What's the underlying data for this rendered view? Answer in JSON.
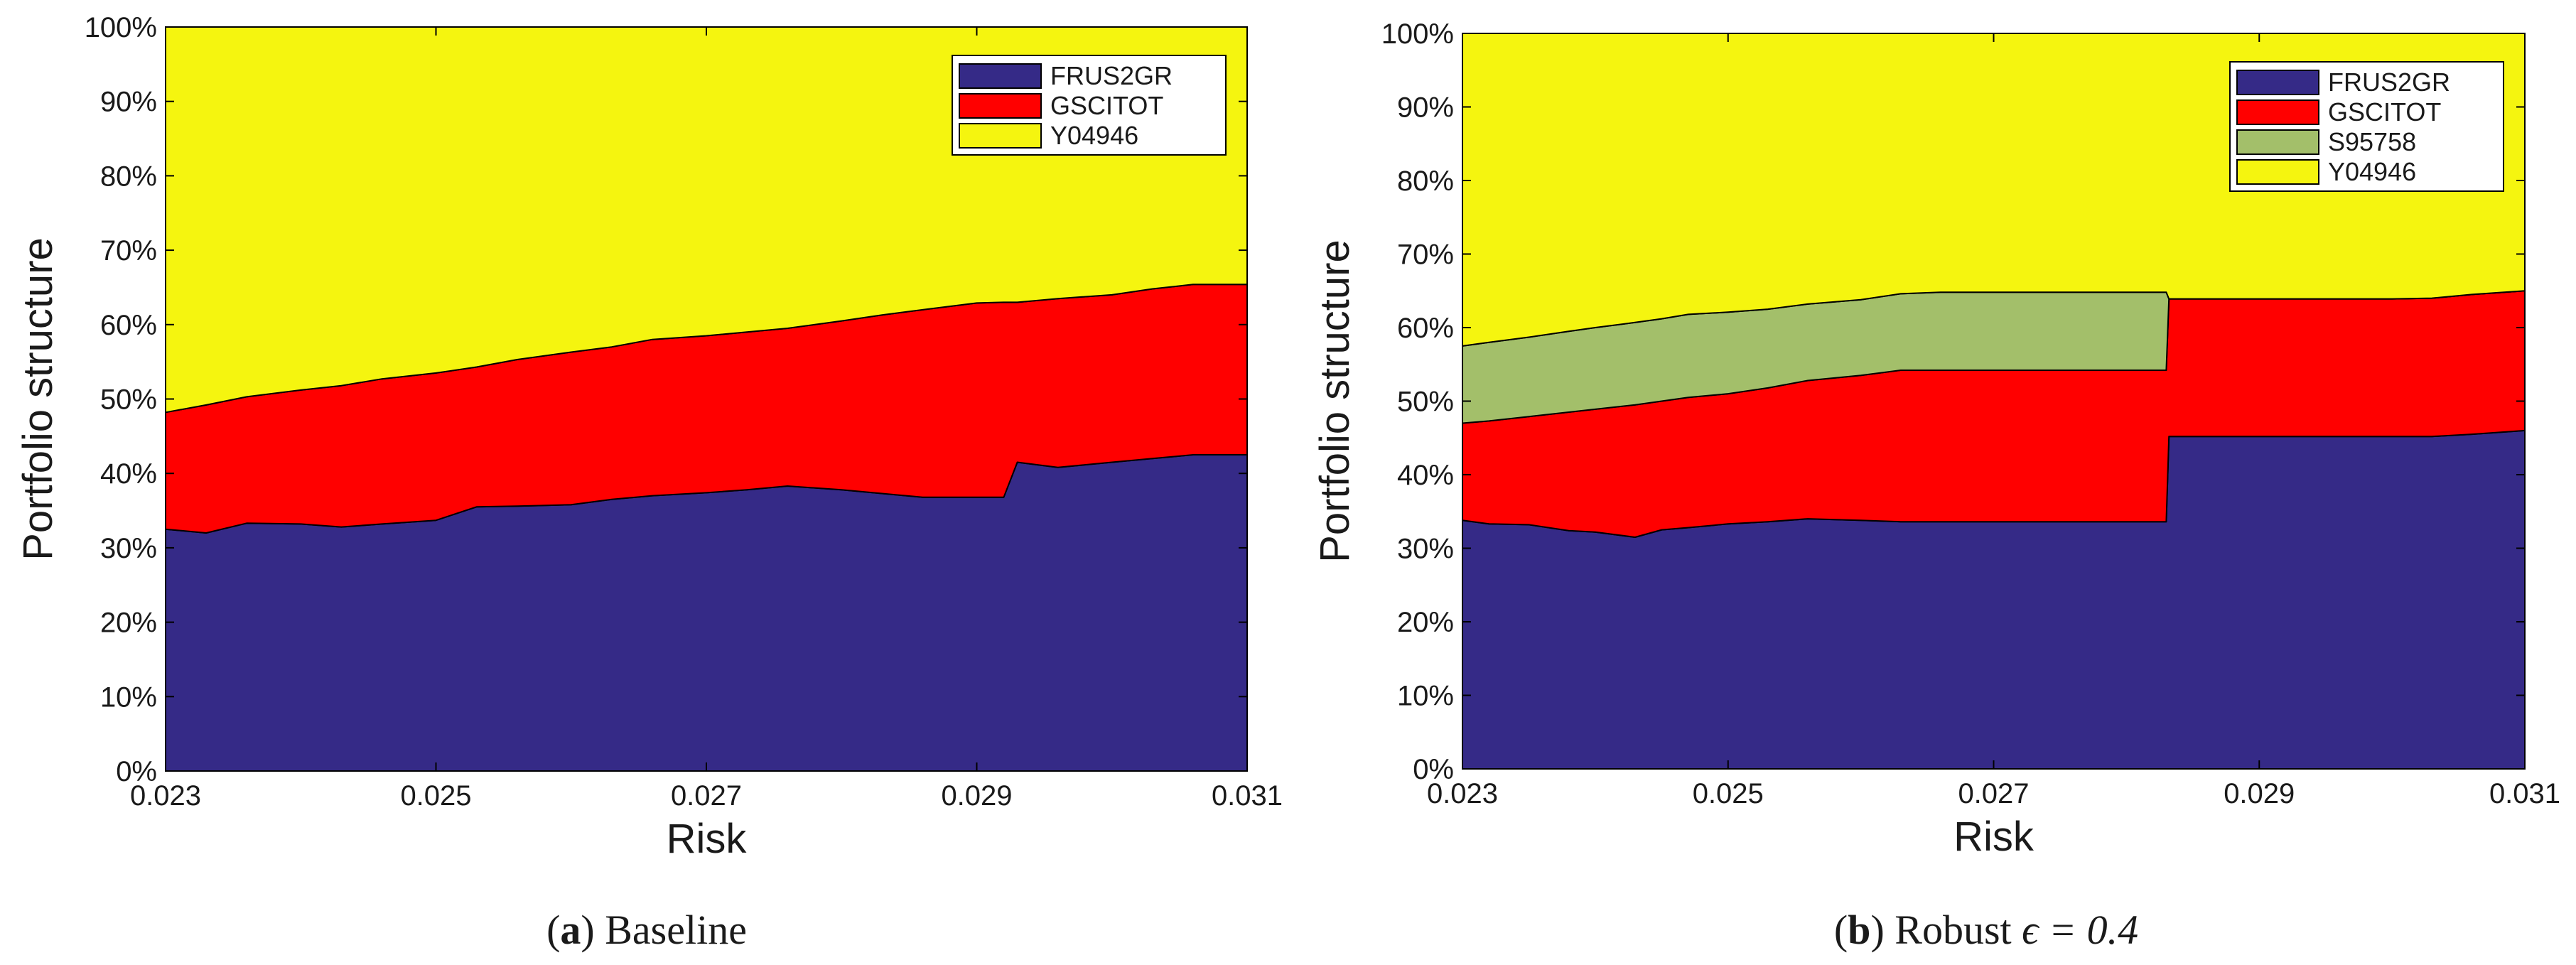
{
  "chart_data": [
    {
      "type": "area",
      "stacked": true,
      "ylabel": "Portfolio structure",
      "xlabel": "Risk",
      "xlim": [
        0.023,
        0.031
      ],
      "ylim": [
        0,
        1
      ],
      "xticks": [
        "0.023",
        "0.025",
        "0.027",
        "0.029",
        "0.031"
      ],
      "yticks": [
        "0%",
        "10%",
        "20%",
        "30%",
        "40%",
        "50%",
        "60%",
        "70%",
        "80%",
        "90%",
        "100%"
      ],
      "legend_position": "top-right",
      "caption": {
        "label": "a",
        "text": "Baseline",
        "math": ""
      },
      "x": [
        0.023,
        0.0233,
        0.0236,
        0.024,
        0.0243,
        0.0246,
        0.025,
        0.0253,
        0.0256,
        0.026,
        0.0263,
        0.0266,
        0.027,
        0.0273,
        0.0276,
        0.028,
        0.0283,
        0.0286,
        0.029,
        0.0292,
        0.0293,
        0.0296,
        0.03,
        0.0303,
        0.0306,
        0.031
      ],
      "series": [
        {
          "name": "FRUS2GR",
          "color": "#352a87",
          "values": [
            0.325,
            0.32,
            0.333,
            0.332,
            0.328,
            0.332,
            0.337,
            0.355,
            0.356,
            0.358,
            0.365,
            0.37,
            0.374,
            0.378,
            0.383,
            0.378,
            0.373,
            0.368,
            0.368,
            0.368,
            0.415,
            0.408,
            0.415,
            0.42,
            0.425,
            0.425
          ]
        },
        {
          "name": "GSCITOT",
          "color": "#ff0000",
          "values": [
            0.157,
            0.172,
            0.17,
            0.18,
            0.19,
            0.195,
            0.198,
            0.188,
            0.197,
            0.205,
            0.205,
            0.21,
            0.211,
            0.212,
            0.212,
            0.227,
            0.24,
            0.252,
            0.261,
            0.262,
            0.215,
            0.227,
            0.225,
            0.228,
            0.229,
            0.229
          ]
        },
        {
          "name": "Y04946",
          "color": "#f5f50f",
          "values": [
            0.518,
            0.508,
            0.497,
            0.488,
            0.482,
            0.473,
            0.465,
            0.457,
            0.447,
            0.437,
            0.43,
            0.42,
            0.415,
            0.41,
            0.405,
            0.395,
            0.387,
            0.38,
            0.371,
            0.37,
            0.37,
            0.365,
            0.36,
            0.352,
            0.346,
            0.346
          ]
        }
      ]
    },
    {
      "type": "area",
      "stacked": true,
      "ylabel": "Portfolio structure",
      "xlabel": "Risk",
      "xlim": [
        0.023,
        0.031
      ],
      "ylim": [
        0,
        1
      ],
      "xticks": [
        "0.023",
        "0.025",
        "0.027",
        "0.029",
        "0.031"
      ],
      "yticks": [
        "0%",
        "10%",
        "20%",
        "30%",
        "40%",
        "50%",
        "60%",
        "70%",
        "80%",
        "90%",
        "100%"
      ],
      "legend_position": "top-right",
      "caption": {
        "label": "b",
        "text": "Robust",
        "math": "ϵ = 0.4"
      },
      "x": [
        0.023,
        0.0232,
        0.0235,
        0.0238,
        0.024,
        0.0243,
        0.0245,
        0.0247,
        0.025,
        0.0253,
        0.0256,
        0.026,
        0.0263,
        0.0266,
        0.027,
        0.0275,
        0.028,
        0.0283,
        0.02832,
        0.0286,
        0.029,
        0.0295,
        0.03,
        0.0303,
        0.0306,
        0.031
      ],
      "series": [
        {
          "name": "FRUS2GR",
          "color": "#352a87",
          "values": [
            0.338,
            0.333,
            0.332,
            0.324,
            0.322,
            0.315,
            0.325,
            0.328,
            0.333,
            0.336,
            0.34,
            0.338,
            0.336,
            0.336,
            0.336,
            0.336,
            0.336,
            0.336,
            0.452,
            0.452,
            0.452,
            0.452,
            0.452,
            0.452,
            0.455,
            0.46
          ]
        },
        {
          "name": "GSCITOT",
          "color": "#ff0000",
          "values": [
            0.132,
            0.14,
            0.147,
            0.161,
            0.167,
            0.18,
            0.175,
            0.177,
            0.177,
            0.182,
            0.188,
            0.197,
            0.206,
            0.206,
            0.206,
            0.206,
            0.206,
            0.206,
            0.187,
            0.187,
            0.187,
            0.187,
            0.187,
            0.188,
            0.19,
            0.19
          ]
        },
        {
          "name": "S95758",
          "color": "#a3bf6a",
          "values": [
            0.105,
            0.107,
            0.108,
            0.11,
            0.111,
            0.112,
            0.112,
            0.113,
            0.111,
            0.107,
            0.104,
            0.103,
            0.104,
            0.106,
            0.106,
            0.106,
            0.106,
            0.106,
            0.0,
            0.0,
            0.0,
            0.0,
            0.0,
            0.0,
            0.0,
            0.0
          ]
        },
        {
          "name": "Y04946",
          "color": "#f5f50f",
          "values": [
            0.425,
            0.42,
            0.413,
            0.405,
            0.4,
            0.393,
            0.388,
            0.382,
            0.379,
            0.375,
            0.368,
            0.362,
            0.354,
            0.352,
            0.352,
            0.352,
            0.352,
            0.352,
            0.361,
            0.361,
            0.361,
            0.361,
            0.361,
            0.36,
            0.355,
            0.35
          ]
        }
      ]
    }
  ]
}
